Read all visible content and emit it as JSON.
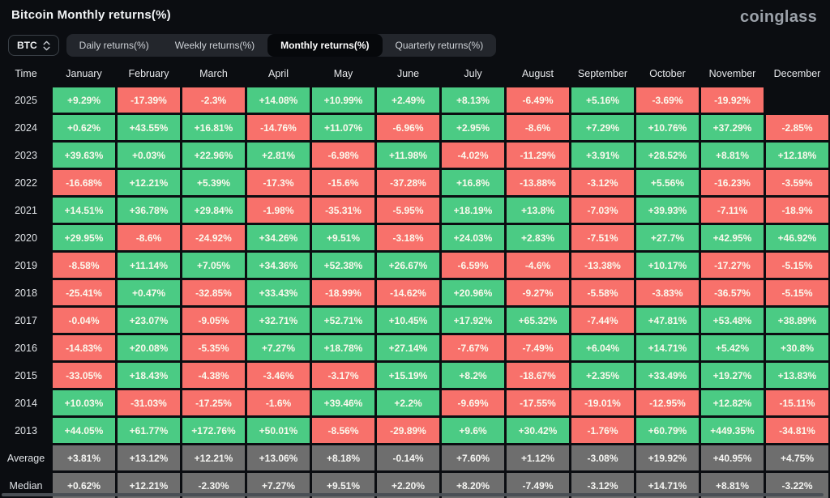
{
  "page": {
    "title": "Bitcoin Monthly returns(%)",
    "logo": "coinglass",
    "background": "#0B0D11"
  },
  "controls": {
    "symbol": "BTC",
    "symbol_icon": "chevron-up-down-icon",
    "tabs": [
      {
        "label": "Daily returns(%)",
        "active": false
      },
      {
        "label": "Weekly returns(%)",
        "active": false
      },
      {
        "label": "Monthly returns(%)",
        "active": true
      },
      {
        "label": "Quarterly returns(%)",
        "active": false
      }
    ]
  },
  "table": {
    "time_header": "Time",
    "months": [
      "January",
      "February",
      "March",
      "April",
      "May",
      "June",
      "July",
      "August",
      "September",
      "October",
      "November",
      "December"
    ],
    "colors": {
      "positive": "#4BCB84",
      "negative": "#F8716B",
      "summary": "#6E6E6E"
    },
    "rows": [
      {
        "label": "2025",
        "type": "year",
        "values": [
          "+9.29%",
          "-17.39%",
          "-2.3%",
          "+14.08%",
          "+10.99%",
          "+2.49%",
          "+8.13%",
          "-6.49%",
          "+5.16%",
          "-3.69%",
          "-19.92%",
          ""
        ]
      },
      {
        "label": "2024",
        "type": "year",
        "values": [
          "+0.62%",
          "+43.55%",
          "+16.81%",
          "-14.76%",
          "+11.07%",
          "-6.96%",
          "+2.95%",
          "-8.6%",
          "+7.29%",
          "+10.76%",
          "+37.29%",
          "-2.85%"
        ]
      },
      {
        "label": "2023",
        "type": "year",
        "values": [
          "+39.63%",
          "+0.03%",
          "+22.96%",
          "+2.81%",
          "-6.98%",
          "+11.98%",
          "-4.02%",
          "-11.29%",
          "+3.91%",
          "+28.52%",
          "+8.81%",
          "+12.18%"
        ]
      },
      {
        "label": "2022",
        "type": "year",
        "values": [
          "-16.68%",
          "+12.21%",
          "+5.39%",
          "-17.3%",
          "-15.6%",
          "-37.28%",
          "+16.8%",
          "-13.88%",
          "-3.12%",
          "+5.56%",
          "-16.23%",
          "-3.59%"
        ]
      },
      {
        "label": "2021",
        "type": "year",
        "values": [
          "+14.51%",
          "+36.78%",
          "+29.84%",
          "-1.98%",
          "-35.31%",
          "-5.95%",
          "+18.19%",
          "+13.8%",
          "-7.03%",
          "+39.93%",
          "-7.11%",
          "-18.9%"
        ]
      },
      {
        "label": "2020",
        "type": "year",
        "values": [
          "+29.95%",
          "-8.6%",
          "-24.92%",
          "+34.26%",
          "+9.51%",
          "-3.18%",
          "+24.03%",
          "+2.83%",
          "-7.51%",
          "+27.7%",
          "+42.95%",
          "+46.92%"
        ]
      },
      {
        "label": "2019",
        "type": "year",
        "values": [
          "-8.58%",
          "+11.14%",
          "+7.05%",
          "+34.36%",
          "+52.38%",
          "+26.67%",
          "-6.59%",
          "-4.6%",
          "-13.38%",
          "+10.17%",
          "-17.27%",
          "-5.15%"
        ]
      },
      {
        "label": "2018",
        "type": "year",
        "values": [
          "-25.41%",
          "+0.47%",
          "-32.85%",
          "+33.43%",
          "-18.99%",
          "-14.62%",
          "+20.96%",
          "-9.27%",
          "-5.58%",
          "-3.83%",
          "-36.57%",
          "-5.15%"
        ]
      },
      {
        "label": "2017",
        "type": "year",
        "values": [
          "-0.04%",
          "+23.07%",
          "-9.05%",
          "+32.71%",
          "+52.71%",
          "+10.45%",
          "+17.92%",
          "+65.32%",
          "-7.44%",
          "+47.81%",
          "+53.48%",
          "+38.89%"
        ]
      },
      {
        "label": "2016",
        "type": "year",
        "values": [
          "-14.83%",
          "+20.08%",
          "-5.35%",
          "+7.27%",
          "+18.78%",
          "+27.14%",
          "-7.67%",
          "-7.49%",
          "+6.04%",
          "+14.71%",
          "+5.42%",
          "+30.8%"
        ]
      },
      {
        "label": "2015",
        "type": "year",
        "values": [
          "-33.05%",
          "+18.43%",
          "-4.38%",
          "-3.46%",
          "-3.17%",
          "+15.19%",
          "+8.2%",
          "-18.67%",
          "+2.35%",
          "+33.49%",
          "+19.27%",
          "+13.83%"
        ]
      },
      {
        "label": "2014",
        "type": "year",
        "values": [
          "+10.03%",
          "-31.03%",
          "-17.25%",
          "-1.6%",
          "+39.46%",
          "+2.2%",
          "-9.69%",
          "-17.55%",
          "-19.01%",
          "-12.95%",
          "+12.82%",
          "-15.11%"
        ]
      },
      {
        "label": "2013",
        "type": "year",
        "values": [
          "+44.05%",
          "+61.77%",
          "+172.76%",
          "+50.01%",
          "-8.56%",
          "-29.89%",
          "+9.6%",
          "+30.42%",
          "-1.76%",
          "+60.79%",
          "+449.35%",
          "-34.81%"
        ]
      },
      {
        "label": "Average",
        "type": "summary",
        "values": [
          "+3.81%",
          "+13.12%",
          "+12.21%",
          "+13.06%",
          "+8.18%",
          "-0.14%",
          "+7.60%",
          "+1.12%",
          "-3.08%",
          "+19.92%",
          "+40.95%",
          "+4.75%"
        ]
      },
      {
        "label": "Median",
        "type": "summary",
        "values": [
          "+0.62%",
          "+12.21%",
          "-2.30%",
          "+7.27%",
          "+9.51%",
          "+2.20%",
          "+8.20%",
          "-7.49%",
          "-3.12%",
          "+14.71%",
          "+8.81%",
          "-3.22%"
        ]
      }
    ]
  },
  "chart_data": {
    "type": "heatmap",
    "title": "Bitcoin Monthly returns(%)",
    "columns": [
      "January",
      "February",
      "March",
      "April",
      "May",
      "June",
      "July",
      "August",
      "September",
      "October",
      "November",
      "December"
    ],
    "row_labels": [
      "2025",
      "2024",
      "2023",
      "2022",
      "2021",
      "2020",
      "2019",
      "2018",
      "2017",
      "2016",
      "2015",
      "2014",
      "2013",
      "Average",
      "Median"
    ],
    "values": [
      [
        9.29,
        -17.39,
        -2.3,
        14.08,
        10.99,
        2.49,
        8.13,
        -6.49,
        5.16,
        -3.69,
        -19.92,
        null
      ],
      [
        0.62,
        43.55,
        16.81,
        -14.76,
        11.07,
        -6.96,
        2.95,
        -8.6,
        7.29,
        10.76,
        37.29,
        -2.85
      ],
      [
        39.63,
        0.03,
        22.96,
        2.81,
        -6.98,
        11.98,
        -4.02,
        -11.29,
        3.91,
        28.52,
        8.81,
        12.18
      ],
      [
        -16.68,
        12.21,
        5.39,
        -17.3,
        -15.6,
        -37.28,
        16.8,
        -13.88,
        -3.12,
        5.56,
        -16.23,
        -3.59
      ],
      [
        14.51,
        36.78,
        29.84,
        -1.98,
        -35.31,
        -5.95,
        18.19,
        13.8,
        -7.03,
        39.93,
        -7.11,
        -18.9
      ],
      [
        29.95,
        -8.6,
        -24.92,
        34.26,
        9.51,
        -3.18,
        24.03,
        2.83,
        -7.51,
        27.7,
        42.95,
        46.92
      ],
      [
        -8.58,
        11.14,
        7.05,
        34.36,
        52.38,
        26.67,
        -6.59,
        -4.6,
        -13.38,
        10.17,
        -17.27,
        -5.15
      ],
      [
        -25.41,
        0.47,
        -32.85,
        33.43,
        -18.99,
        -14.62,
        20.96,
        -9.27,
        -5.58,
        -3.83,
        -36.57,
        -5.15
      ],
      [
        -0.04,
        23.07,
        -9.05,
        32.71,
        52.71,
        10.45,
        17.92,
        65.32,
        -7.44,
        47.81,
        53.48,
        38.89
      ],
      [
        -14.83,
        20.08,
        -5.35,
        7.27,
        18.78,
        27.14,
        -7.67,
        -7.49,
        6.04,
        14.71,
        5.42,
        30.8
      ],
      [
        -33.05,
        18.43,
        -4.38,
        -3.46,
        -3.17,
        15.19,
        8.2,
        -18.67,
        2.35,
        33.49,
        19.27,
        13.83
      ],
      [
        10.03,
        -31.03,
        -17.25,
        -1.6,
        39.46,
        2.2,
        -9.69,
        -17.55,
        -19.01,
        -12.95,
        12.82,
        -15.11
      ],
      [
        44.05,
        61.77,
        172.76,
        50.01,
        -8.56,
        -29.89,
        9.6,
        30.42,
        -1.76,
        60.79,
        449.35,
        -34.81
      ],
      [
        3.81,
        13.12,
        12.21,
        13.06,
        8.18,
        -0.14,
        7.6,
        1.12,
        -3.08,
        19.92,
        40.95,
        4.75
      ],
      [
        0.62,
        12.21,
        -2.3,
        7.27,
        9.51,
        2.2,
        8.2,
        -7.49,
        -3.12,
        14.71,
        8.81,
        -3.22
      ]
    ],
    "value_unit": "%",
    "color_positive": "#4BCB84",
    "color_negative": "#F8716B",
    "color_summary_rows": "#6E6E6E"
  }
}
